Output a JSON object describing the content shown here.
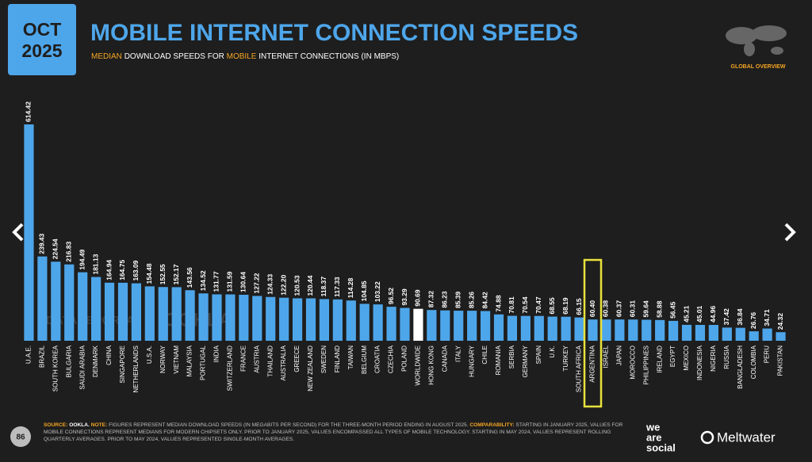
{
  "header": {
    "month": "OCT",
    "year": "2025",
    "section": "GLOBAL OVERVIEW",
    "page_number": "86"
  },
  "chart_data": {
    "type": "bar",
    "title": "MOBILE INTERNET CONNECTION SPEEDS",
    "subtitle": [
      "MEDIAN",
      "DOWNLOAD SPEEDS FOR",
      "MOBILE",
      "INTERNET CONNECTIONS (IN MBPS)"
    ],
    "categories": [
      "U.A.E.",
      "BRAZIL",
      "SOUTH KOREA",
      "BULGARIA",
      "SAUDI ARABIA",
      "DENMARK",
      "CHINA",
      "SINGAPORE",
      "NETHERLANDS",
      "U.S.A.",
      "NORWAY",
      "VIETNAM",
      "MALAYSIA",
      "PORTUGAL",
      "INDIA",
      "SWITZERLAND",
      "FRANCE",
      "AUSTRIA",
      "THAILAND",
      "AUSTRALIA",
      "GREECE",
      "NEW ZEALAND",
      "SWEDEN",
      "FINLAND",
      "TAIWAN",
      "BELGIUM",
      "CROATIA",
      "CZECHIA",
      "POLAND",
      "WORLDWIDE",
      "HONG KONG",
      "CANADA",
      "ITALY",
      "HUNGARY",
      "CHILE",
      "ROMANIA",
      "SERBIA",
      "GERMANY",
      "SPAIN",
      "U.K.",
      "TURKEY",
      "SOUTH AFRICA",
      "ARGENTINA",
      "ISRAEL",
      "JAPAN",
      "MOROCCO",
      "PHILIPPINES",
      "IRELAND",
      "EGYPT",
      "MEXICO",
      "INDONESIA",
      "NIGERIA",
      "RUSSIA",
      "BANGLADESH",
      "COLOMBIA",
      "PERU",
      "PAKISTAN"
    ],
    "values": [
      614.42,
      239.43,
      224.54,
      216.83,
      194.49,
      181.13,
      164.94,
      164.75,
      163.09,
      154.48,
      152.55,
      152.17,
      143.56,
      134.52,
      131.77,
      131.59,
      130.64,
      127.22,
      124.33,
      122.2,
      120.53,
      120.44,
      118.37,
      117.33,
      114.28,
      104.85,
      103.22,
      96.52,
      93.29,
      90.69,
      87.32,
      86.23,
      85.39,
      85.26,
      84.42,
      74.88,
      70.81,
      70.54,
      70.47,
      68.55,
      68.19,
      66.15,
      60.4,
      60.38,
      60.37,
      60.31,
      59.64,
      58.88,
      56.45,
      45.21,
      45.01,
      44.96,
      37.42,
      36.84,
      26.76,
      34.71,
      24.32
    ],
    "value_labels": [
      "614.42",
      "239.43",
      "224.54",
      "216.83",
      "194.49",
      "181.13",
      "164.94",
      "164.75",
      "163.09",
      "154.48",
      "152.55",
      "152.17",
      "143.56",
      "134.52",
      "131.77",
      "131.59",
      "130.64",
      "127.22",
      "124.33",
      "122.20",
      "120.53",
      "120.44",
      "118.37",
      "117.33",
      "114.28",
      "104.85",
      "103.22",
      "96.52",
      "93.29",
      "90.69",
      "87.32",
      "86.23",
      "85.39",
      "85.26",
      "84.42",
      "74.88",
      "70.81",
      "70.54",
      "70.47",
      "68.55",
      "68.19",
      "66.15",
      "60.40",
      "60.38",
      "60.37",
      "60.31",
      "59.64",
      "58.88",
      "56.45",
      "45.21",
      "45.01",
      "44.96",
      "37.42",
      "36.84",
      "26.76",
      "34.71",
      "24.32"
    ],
    "color": "#4ea6ea",
    "special": {
      "index": 29,
      "color": "#ffffff"
    },
    "highlight": {
      "index": 42,
      "color": "#e9e23c"
    },
    "watermarks": [
      "DATAREPORTAL",
      "OOKLA"
    ]
  },
  "footer": {
    "segments": [
      "SOURCE:",
      "OOKLA.",
      "NOTE:",
      "FIGURES REPRESENT MEDIAN DOWNLOAD SPEEDS (IN MEGABITS PER SECOND) FOR THE THREE-MONTH PERIOD ENDING IN AUGUST 2025.",
      "COMPARABILITY:",
      "STARTING IN JANUARY 2025, VALUES FOR MOBILE CONNECTIONS REPRESENT MEDIANS FOR MODERN CHIPSETS ONLY. PRIOR TO JANUARY 2025, VALUES ENCOMPASSED ALL TYPES OF MOBILE TECHNOLOGY. STARTING IN MAY 2024, VALUES REPRESENT ROLLING QUARTERLY AVERAGES. PRIOR TO MAY 2024, VALUES REPRESENTED SINGLE-MONTH AVERAGES."
    ],
    "brand_1": [
      "we",
      "are",
      "social"
    ],
    "brand_2": "Meltwater"
  }
}
